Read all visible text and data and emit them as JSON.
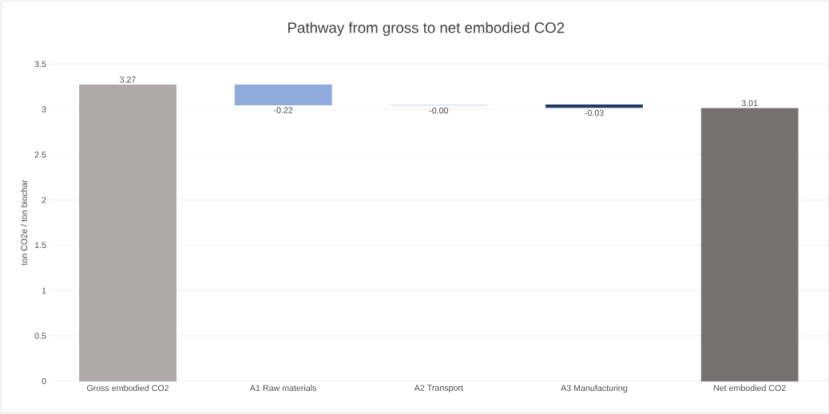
{
  "chart_data": {
    "type": "bar",
    "title": "Pathway from gross to net embodied CO2",
    "ylabel": "ton CO2e / ton biochar",
    "categories": [
      "Gross embodied CO2",
      "A1 Raw materials",
      "A2 Transport",
      "A3 Manufacturing",
      "Net embodied CO2"
    ],
    "values": [
      3.27,
      -0.22,
      -0.004,
      -0.03,
      3.01
    ],
    "base": [
      0,
      3.27,
      3.05,
      3.05,
      0
    ],
    "colors": [
      "#aeaaaa",
      "#8faadc",
      "#dae3f3",
      "#203864",
      "#767171"
    ],
    "value_labels": [
      "3.27",
      "-0.22",
      "-0.00",
      "-0.03",
      "3.01"
    ],
    "ylim": [
      0,
      3.5
    ],
    "yticks": [
      0,
      0.5,
      1,
      1.5,
      2,
      2.5,
      3,
      3.5
    ],
    "grid": "y"
  }
}
